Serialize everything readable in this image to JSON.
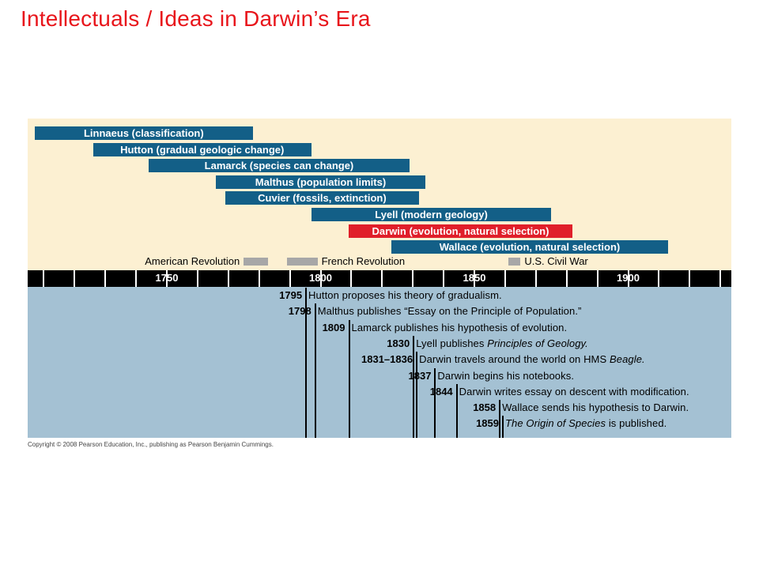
{
  "title": "Intellectuals / Ideas  in Darwin’s Era",
  "colors": {
    "bar": "#135f87",
    "highlight_bar": "#e01f2a",
    "upper_background": "#fcf0d2",
    "lower_background": "#a4c1d3",
    "axis": "#000000",
    "title": "#e8151b"
  },
  "scientists": [
    {
      "label": "Linnaeus (classification)",
      "start": 1707,
      "end": 1778,
      "highlight": false
    },
    {
      "label": "Hutton (gradual geologic change)",
      "start": 1726,
      "end": 1797,
      "highlight": false
    },
    {
      "label": "Lamarck (species can change)",
      "start": 1744,
      "end": 1829,
      "highlight": false
    },
    {
      "label": "Malthus (population limits)",
      "start": 1766,
      "end": 1834,
      "highlight": false
    },
    {
      "label": "Cuvier (fossils, extinction)",
      "start": 1769,
      "end": 1832,
      "highlight": false
    },
    {
      "label": "Lyell (modern geology)",
      "start": 1797,
      "end": 1875,
      "highlight": false
    },
    {
      "label": "Darwin (evolution, natural selection)",
      "start": 1809,
      "end": 1882,
      "highlight": true
    },
    {
      "label": "Wallace (evolution, natural selection)",
      "start": 1823,
      "end": 1913,
      "highlight": false
    }
  ],
  "events": [
    {
      "label": "American Revolution",
      "start": 1775,
      "end": 1783,
      "label_side": "left"
    },
    {
      "label": "French Revolution",
      "start": 1789,
      "end": 1799,
      "label_side": "right"
    },
    {
      "label": "U.S. Civil War",
      "start": 1861,
      "end": 1865,
      "label_side": "right"
    }
  ],
  "axis": {
    "ticks": [
      "1750",
      "1800",
      "1850",
      "1900"
    ]
  },
  "milestones": [
    {
      "year": "1795",
      "text": "Hutton proposes his theory of gradualism.",
      "italic": ""
    },
    {
      "year": "1798",
      "text": "Malthus publishes “Essay on the Principle of Population.”",
      "italic": ""
    },
    {
      "year": "1809",
      "text": "Lamarck publishes his hypothesis of evolution.",
      "italic": ""
    },
    {
      "year": "1830",
      "text": "Lyell publishes ",
      "italic": "Principles of Geology."
    },
    {
      "year": "1831–1836",
      "text": "Darwin travels around the world on HMS ",
      "italic": "Beagle."
    },
    {
      "year": "1837",
      "text": "Darwin begins his notebooks.",
      "italic": ""
    },
    {
      "year": "1844",
      "text": "Darwin writes essay on descent with modification.",
      "italic": ""
    },
    {
      "year": "1858",
      "text": "Wallace sends his hypothesis to Darwin.",
      "italic": ""
    },
    {
      "year": "1859",
      "text": " is published.",
      "italic_lead": "The Origin of Species"
    }
  ],
  "copyright": "Copyright © 2008 Pearson Education, Inc., publishing as Pearson Benjamin Cummings."
}
